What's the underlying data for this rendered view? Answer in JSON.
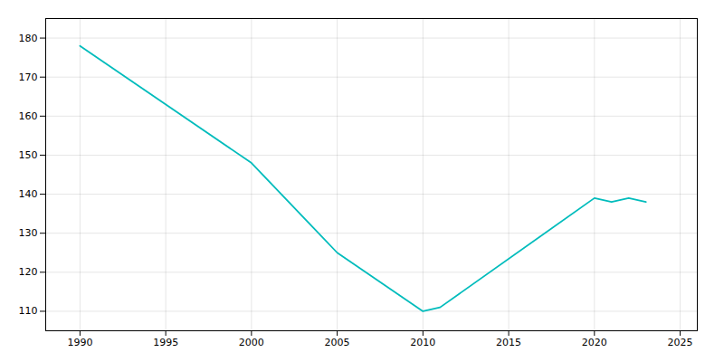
{
  "chart_data": {
    "type": "line",
    "x": [
      1990,
      2000,
      2005,
      2010,
      2011,
      2020,
      2021,
      2022,
      2023
    ],
    "values": [
      178,
      148,
      125,
      110,
      111,
      139,
      138,
      139,
      138
    ],
    "color": "#00BCBC",
    "xlim": [
      1988,
      2026
    ],
    "ylim": [
      105,
      185
    ],
    "xticks": [
      1990,
      1995,
      2000,
      2005,
      2010,
      2015,
      2020,
      2025
    ],
    "yticks": [
      110,
      120,
      130,
      140,
      150,
      160,
      170,
      180
    ],
    "grid": true
  }
}
